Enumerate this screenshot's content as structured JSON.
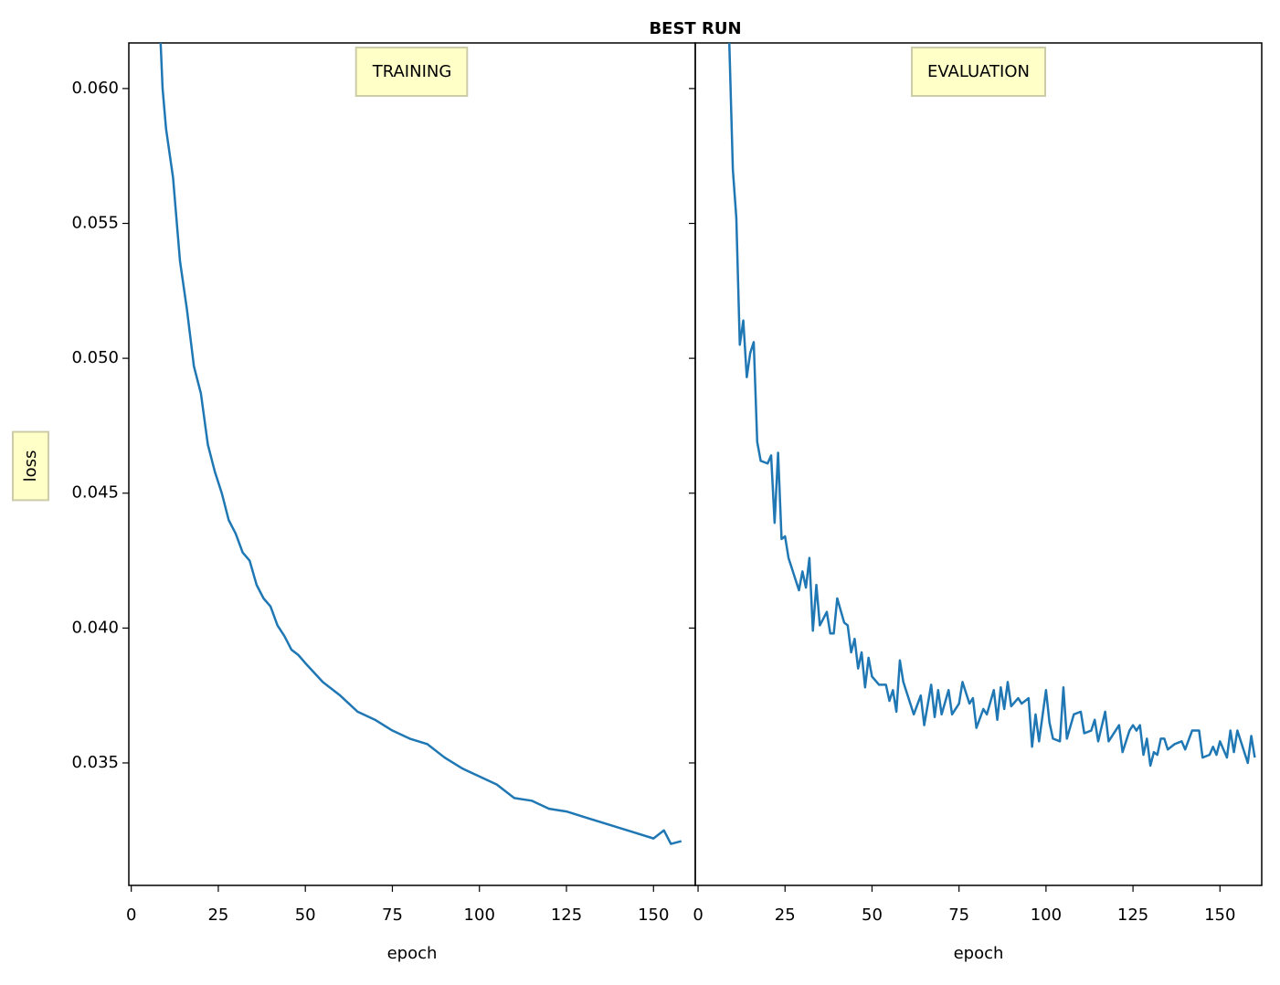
{
  "title": "BEST RUN",
  "chart_data": [
    {
      "type": "line",
      "title": "TRAINING",
      "x_label": "epoch",
      "y_label": "loss",
      "color": "#1f77b4",
      "xlim": [
        -0.7,
        162
      ],
      "xticks": [
        0,
        25,
        50,
        75,
        100,
        125,
        150
      ],
      "ylim": [
        0.03046,
        0.06169
      ],
      "yticks": [
        0.035,
        {
          "value": 0.04,
          "label": "0.040"
        },
        0.045,
        {
          "value": 0.05,
          "label": "0.050"
        },
        0.055,
        {
          "value": 0.06,
          "label": "0.060"
        }
      ],
      "x": [
        8,
        9,
        10,
        12,
        14,
        16,
        18,
        20,
        22,
        24,
        26,
        28,
        30,
        32,
        34,
        36,
        38,
        40,
        42,
        44,
        46,
        48,
        50,
        55,
        60,
        65,
        70,
        75,
        80,
        85,
        90,
        95,
        100,
        105,
        110,
        115,
        120,
        125,
        130,
        135,
        140,
        145,
        150,
        153,
        155,
        158
      ],
      "values": [
        0.063,
        0.06,
        0.0585,
        0.0567,
        0.0536,
        0.0518,
        0.0497,
        0.0487,
        0.0468,
        0.0458,
        0.045,
        0.044,
        0.0435,
        0.0428,
        0.0425,
        0.0416,
        0.0411,
        0.0408,
        0.0401,
        0.0397,
        0.0392,
        0.039,
        0.0387,
        0.038,
        0.0375,
        0.0369,
        0.0366,
        0.0362,
        0.0359,
        0.0357,
        0.0352,
        0.0348,
        0.0345,
        0.0342,
        0.0337,
        0.0336,
        0.0333,
        0.0332,
        0.033,
        0.0328,
        0.0326,
        0.0324,
        0.0322,
        0.0325,
        0.032,
        0.0321
      ]
    },
    {
      "type": "line",
      "title": "EVALUATION",
      "x_label": "epoch",
      "color": "#1f77b4",
      "xlim": [
        -0.8,
        162
      ],
      "xticks": [
        0,
        25,
        50,
        75,
        100,
        125,
        150
      ],
      "ylim": [
        0.03046,
        0.06169
      ],
      "x": [
        8,
        9,
        10,
        11,
        12,
        13,
        14,
        15,
        16,
        17,
        18,
        20,
        21,
        22,
        23,
        24,
        25,
        26,
        28,
        29,
        30,
        31,
        32,
        33,
        34,
        35,
        37,
        38,
        39,
        40,
        42,
        43,
        44,
        45,
        46,
        47,
        48,
        49,
        50,
        52,
        54,
        55,
        56,
        57,
        58,
        59,
        60,
        62,
        64,
        65,
        67,
        68,
        69,
        70,
        72,
        73,
        75,
        76,
        78,
        79,
        80,
        82,
        83,
        85,
        86,
        87,
        88,
        89,
        90,
        92,
        93,
        95,
        96,
        97,
        98,
        100,
        101,
        102,
        104,
        105,
        106,
        108,
        110,
        111,
        113,
        114,
        115,
        117,
        118,
        120,
        121,
        122,
        124,
        125,
        126,
        127,
        128,
        129,
        130,
        131,
        132,
        133,
        134,
        135,
        137,
        139,
        140,
        142,
        144,
        145,
        147,
        148,
        149,
        150,
        152,
        153,
        154,
        155,
        156,
        158,
        159,
        160
      ],
      "values": [
        0.065,
        0.0616,
        0.057,
        0.0552,
        0.0505,
        0.0514,
        0.0493,
        0.0502,
        0.0506,
        0.0469,
        0.0462,
        0.0461,
        0.0464,
        0.0439,
        0.0465,
        0.0433,
        0.0434,
        0.0426,
        0.0418,
        0.0414,
        0.0421,
        0.0415,
        0.0426,
        0.0399,
        0.0416,
        0.0401,
        0.0406,
        0.0398,
        0.0398,
        0.0411,
        0.0402,
        0.0401,
        0.0391,
        0.0396,
        0.0385,
        0.0391,
        0.0378,
        0.0389,
        0.0382,
        0.0379,
        0.0379,
        0.0373,
        0.0377,
        0.0369,
        0.0388,
        0.038,
        0.0376,
        0.0368,
        0.0375,
        0.0364,
        0.0379,
        0.0367,
        0.0377,
        0.0368,
        0.0377,
        0.0368,
        0.0372,
        0.038,
        0.0372,
        0.0374,
        0.0363,
        0.037,
        0.0368,
        0.0377,
        0.0366,
        0.0378,
        0.037,
        0.038,
        0.0371,
        0.0374,
        0.0372,
        0.0374,
        0.0356,
        0.0368,
        0.0358,
        0.0377,
        0.0365,
        0.0359,
        0.0358,
        0.0378,
        0.0359,
        0.0368,
        0.0369,
        0.0361,
        0.0362,
        0.0366,
        0.0358,
        0.0369,
        0.0358,
        0.0362,
        0.0364,
        0.0354,
        0.0362,
        0.0364,
        0.0362,
        0.0364,
        0.0353,
        0.0359,
        0.0349,
        0.0354,
        0.0353,
        0.0359,
        0.0359,
        0.0355,
        0.0357,
        0.0358,
        0.0355,
        0.0362,
        0.0362,
        0.0352,
        0.0353,
        0.0356,
        0.0353,
        0.0358,
        0.0352,
        0.0362,
        0.0354,
        0.0362,
        0.0358,
        0.035,
        0.036,
        0.0352
      ]
    }
  ]
}
